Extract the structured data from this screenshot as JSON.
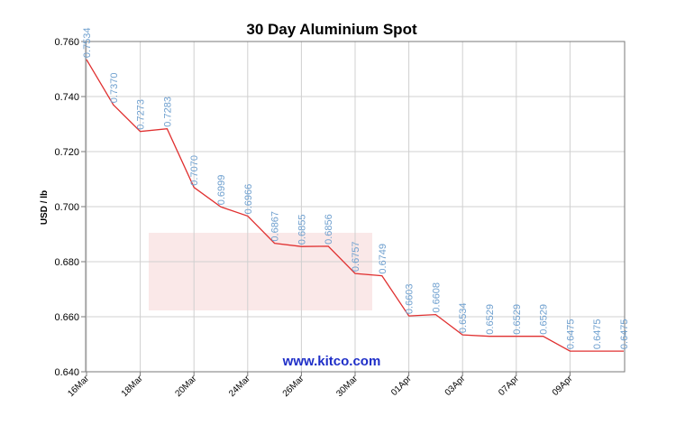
{
  "chart_data": {
    "type": "line",
    "title": "30 Day Aluminium Spot",
    "ylabel": "USD / lb",
    "xlabel": "",
    "ylim": [
      0.64,
      0.76
    ],
    "yticks": [
      "0.640",
      "0.660",
      "0.680",
      "0.700",
      "0.720",
      "0.740",
      "0.760"
    ],
    "xticks": [
      "16Mar",
      "18Mar",
      "20Mar",
      "24Mar",
      "26Mar",
      "30Mar",
      "01Apr",
      "03Apr",
      "07Apr",
      "09Apr"
    ],
    "grid": true,
    "line_color": "#e03030",
    "label_color": "#6fa0cf",
    "series": [
      {
        "values": [
          0.7534,
          0.737,
          0.7273,
          0.7283,
          0.707,
          0.6999,
          0.6966,
          0.6867,
          0.6855,
          0.6856,
          0.6757,
          0.6749,
          0.6603,
          0.6608,
          0.6534,
          0.6529,
          0.6529,
          0.6529,
          0.6475,
          0.6475,
          0.6475
        ],
        "labels": [
          "0.7534",
          "0.7370",
          "0.7273",
          "0.7283",
          "0.7070",
          "0.6999",
          "0.6966",
          "0.6867",
          "0.6855",
          "0.6856",
          "0.6757",
          "0.6749",
          "0.6603",
          "0.6608",
          "0.6534",
          "0.6529",
          "0.6529",
          "0.6529",
          "0.6475",
          "0.6475",
          "0.6475"
        ]
      }
    ]
  },
  "source": "www.kitco.com"
}
